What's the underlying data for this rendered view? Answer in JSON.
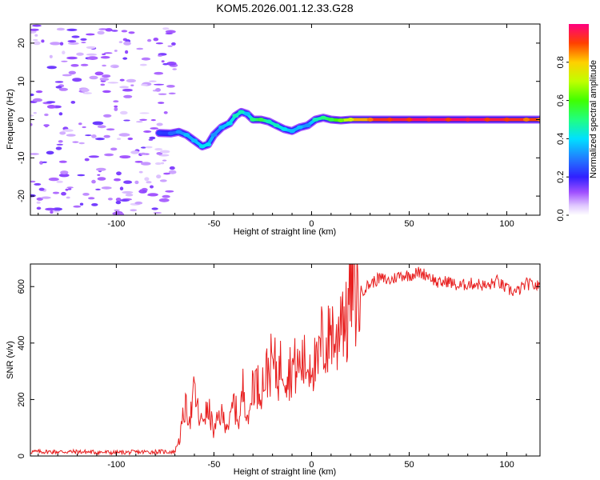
{
  "title": "KOM5.2026.001.12.33.G28",
  "chart_data": [
    {
      "type": "heatmap",
      "title": "KOM5.2026.001.12.33.G28",
      "xlabel": "Height of straight line (km)",
      "ylabel": "Frequency (Hz)",
      "xlim": [
        -144,
        117
      ],
      "ylim": [
        -25,
        25
      ],
      "xticks": [
        -100,
        -50,
        0,
        50,
        100
      ],
      "yticks": [
        -20,
        -10,
        0,
        10,
        20
      ],
      "xtick_labels": [
        "-100",
        "-50",
        "0",
        "50",
        "100"
      ],
      "ytick_labels": [
        "-20",
        "-10",
        "0",
        "10",
        "20"
      ],
      "description_of_ridge": "spectral ridge (frequency peak) vs height",
      "ridge": {
        "x": [
          -78,
          -72,
          -68,
          -64,
          -60,
          -56,
          -53,
          -50,
          -46,
          -42,
          -39,
          -36,
          -33,
          -30,
          -26,
          -22,
          -18,
          -14,
          -10,
          -6,
          -2,
          2,
          6,
          10,
          15,
          20,
          30,
          40,
          50,
          60,
          70,
          80,
          90,
          100,
          110,
          117
        ],
        "y": [
          -3.5,
          -3.6,
          -3.2,
          -4,
          -5.5,
          -7,
          -6.5,
          -4,
          -2,
          -1,
          1,
          2,
          1.5,
          0,
          0,
          -0.5,
          -1.5,
          -2.5,
          -3,
          -2,
          -1.5,
          0,
          0.5,
          0,
          -0.2,
          0,
          0,
          0,
          0,
          0,
          0,
          0,
          0,
          0,
          0,
          0
        ],
        "amplitude": [
          0.2,
          0.25,
          0.3,
          0.35,
          0.35,
          0.4,
          0.4,
          0.3,
          0.35,
          0.4,
          0.45,
          0.45,
          0.35,
          0.5,
          0.55,
          0.45,
          0.45,
          0.4,
          0.35,
          0.35,
          0.3,
          0.45,
          0.5,
          0.55,
          0.65,
          0.75,
          0.9,
          0.95,
          0.95,
          1.0,
          0.95,
          1.0,
          0.95,
          0.95,
          0.9,
          0.9
        ]
      },
      "noise_region_x": [
        -144,
        -70
      ],
      "colorbar": {
        "label": "Normalized spectral amplitude",
        "range": [
          0,
          1
        ],
        "ticks": [
          0.0,
          0.2,
          0.4,
          0.6,
          0.8
        ],
        "tick_labels": [
          "0.0",
          "0.2",
          "0.4",
          "0.6",
          "0.8"
        ]
      }
    },
    {
      "type": "line",
      "xlabel": "Height of straight line (km)",
      "ylabel": "SNR (v/v)",
      "xlim": [
        -144,
        117
      ],
      "ylim": [
        0,
        680
      ],
      "xticks": [
        -100,
        -50,
        0,
        50,
        100
      ],
      "yticks": [
        0,
        200,
        400,
        600
      ],
      "xtick_labels": [
        "-100",
        "-50",
        "0",
        "50",
        "100"
      ],
      "ytick_labels": [
        "0",
        "200",
        "400",
        "600"
      ],
      "color": "#e82020",
      "series": [
        {
          "name": "SNR",
          "x": [
            -144,
            -120,
            -100,
            -80,
            -70,
            -67,
            -65,
            -62,
            -60,
            -57,
            -55,
            -52,
            -50,
            -47,
            -45,
            -42,
            -40,
            -37,
            -35,
            -32,
            -30,
            -27,
            -25,
            -22,
            -20,
            -17,
            -15,
            -12,
            -10,
            -7,
            -5,
            -2,
            0,
            3,
            5,
            8,
            10,
            13,
            15,
            18,
            20,
            22,
            25,
            30,
            35,
            40,
            45,
            50,
            55,
            60,
            65,
            70,
            75,
            80,
            85,
            90,
            95,
            100,
            105,
            110,
            117
          ],
          "y": [
            15,
            15,
            12,
            15,
            15,
            80,
            170,
            140,
            230,
            110,
            150,
            150,
            80,
            150,
            130,
            110,
            190,
            120,
            250,
            120,
            280,
            240,
            260,
            310,
            330,
            290,
            340,
            290,
            320,
            310,
            330,
            320,
            350,
            300,
            410,
            380,
            470,
            380,
            560,
            450,
            620,
            560,
            580,
            610,
            630,
            620,
            640,
            640,
            650,
            640,
            610,
            620,
            600,
            610,
            610,
            600,
            620,
            590,
            580,
            610,
            600
          ]
        }
      ]
    }
  ]
}
